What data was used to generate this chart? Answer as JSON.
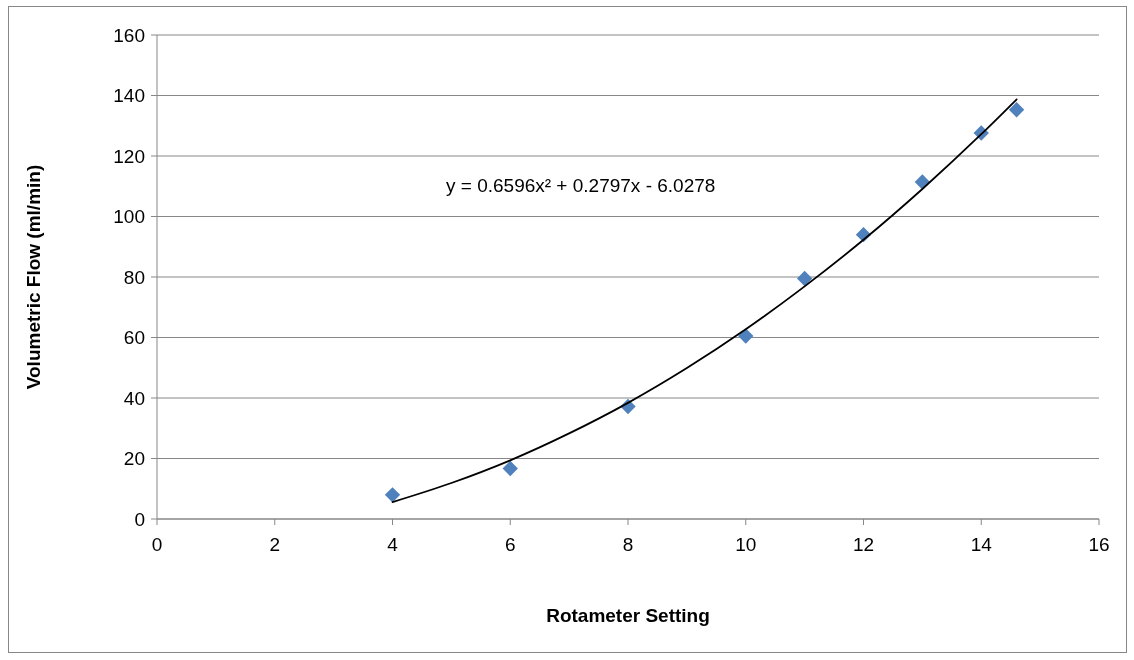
{
  "chart_data": {
    "type": "scatter",
    "xlabel": "Rotameter Setting",
    "ylabel": "Volumetric Flow (ml/min)",
    "xlim": [
      0,
      16
    ],
    "xticks": [
      0,
      2,
      4,
      6,
      8,
      10,
      12,
      14,
      16
    ],
    "ylim": [
      0,
      160
    ],
    "yticks": [
      0,
      20,
      40,
      60,
      80,
      100,
      120,
      140,
      160
    ],
    "grid": "y",
    "marker": "diamond",
    "annotations": [
      "y = 0.6596x² + 0.2797x - 6.0278"
    ],
    "series": [
      {
        "type": "scatter",
        "color": "#4f81bd",
        "x": [
          4,
          6,
          8,
          10,
          11,
          12,
          13,
          14,
          14.6
        ],
        "values": [
          8.0,
          16.7,
          37.2,
          60.5,
          79.5,
          94.0,
          111.4,
          127.6,
          135.3
        ]
      },
      {
        "type": "line",
        "color": "#000000",
        "line_style": "solid",
        "marker": "none",
        "x": [
          4,
          5,
          6,
          7,
          8,
          9,
          10,
          11,
          12,
          13,
          14,
          14.6
        ],
        "values": [
          5.6,
          11.9,
          19.4,
          28.3,
          38.4,
          49.9,
          62.7,
          76.9,
          92.3,
          109.1,
          127.2,
          138.7
        ]
      }
    ]
  }
}
